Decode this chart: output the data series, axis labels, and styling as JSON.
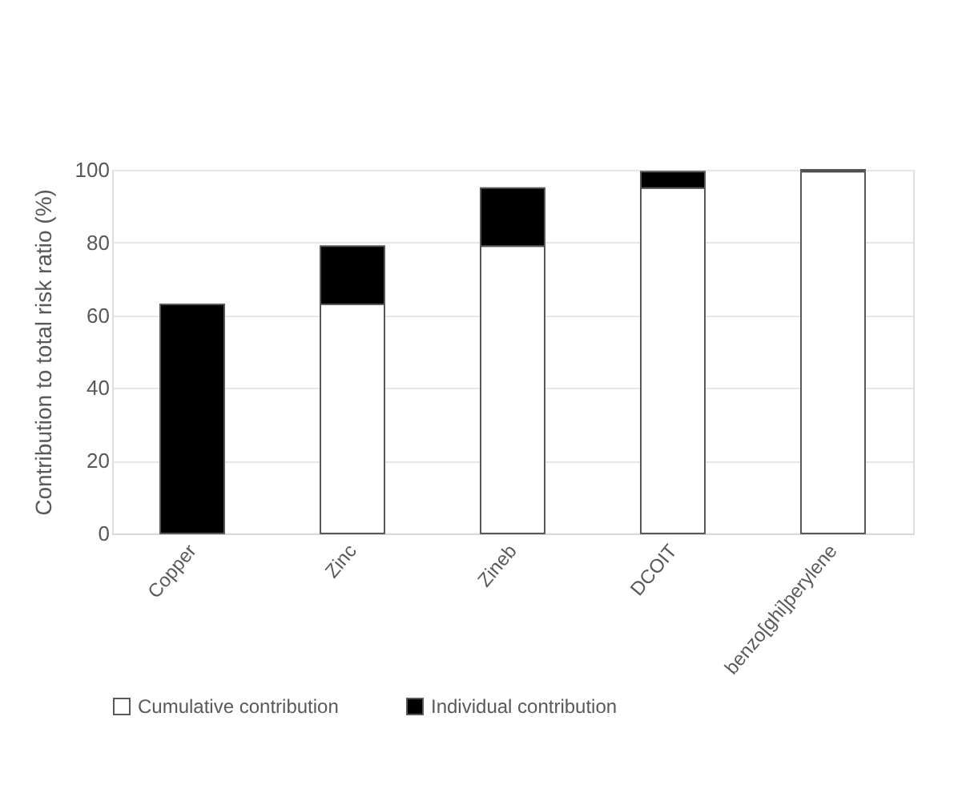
{
  "chart_data": {
    "type": "bar",
    "stacked": true,
    "ylabel": "Contribution to total risk ratio (%)",
    "categories": [
      "Copper",
      "Zinc",
      "Zineb",
      "DCOIT",
      "benzo[ghi]perylene"
    ],
    "series": [
      {
        "name": "Cumulative contribution",
        "color": "#ffffff",
        "values": [
          0,
          63,
          79,
          95,
          99.5
        ]
      },
      {
        "name": "Individual contribution",
        "color": "#000000",
        "values": [
          63,
          16,
          16,
          4.5,
          0.5
        ]
      }
    ],
    "ylim": [
      0,
      100
    ],
    "yticks": [
      0,
      20,
      40,
      60,
      80,
      100
    ],
    "grid": "y",
    "legend": "bottom"
  }
}
